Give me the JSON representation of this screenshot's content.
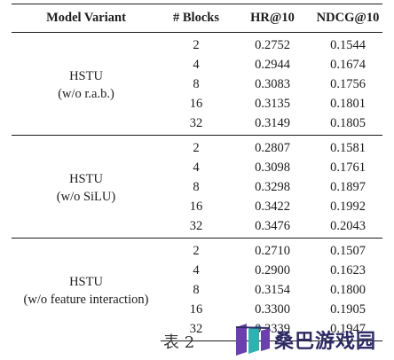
{
  "table": {
    "headers": [
      "Model Variant",
      "# Blocks",
      "HR@10",
      "NDCG@10"
    ],
    "groups": [
      {
        "variant_lines": [
          "HSTU",
          "(w/o r.a.b.)"
        ],
        "rows": [
          {
            "blocks": "2",
            "hr": "0.2752",
            "ndcg": "0.1544"
          },
          {
            "blocks": "4",
            "hr": "0.2944",
            "ndcg": "0.1674"
          },
          {
            "blocks": "8",
            "hr": "0.3083",
            "ndcg": "0.1756"
          },
          {
            "blocks": "16",
            "hr": "0.3135",
            "ndcg": "0.1801"
          },
          {
            "blocks": "32",
            "hr": "0.3149",
            "ndcg": "0.1805"
          }
        ]
      },
      {
        "variant_lines": [
          "HSTU",
          "(w/o SiLU)"
        ],
        "rows": [
          {
            "blocks": "2",
            "hr": "0.2807",
            "ndcg": "0.1581"
          },
          {
            "blocks": "4",
            "hr": "0.3098",
            "ndcg": "0.1761"
          },
          {
            "blocks": "8",
            "hr": "0.3298",
            "ndcg": "0.1897"
          },
          {
            "blocks": "16",
            "hr": "0.3422",
            "ndcg": "0.1992"
          },
          {
            "blocks": "32",
            "hr": "0.3476",
            "ndcg": "0.2043"
          }
        ]
      },
      {
        "variant_lines": [
          "HSTU",
          "(w/o feature interaction)"
        ],
        "rows": [
          {
            "blocks": "2",
            "hr": "0.2710",
            "ndcg": "0.1507"
          },
          {
            "blocks": "4",
            "hr": "0.2900",
            "ndcg": "0.1623"
          },
          {
            "blocks": "8",
            "hr": "0.3154",
            "ndcg": "0.1800"
          },
          {
            "blocks": "16",
            "hr": "0.3300",
            "ndcg": "0.1905"
          },
          {
            "blocks": "32",
            "hr": "0.3339",
            "ndcg": "0.1947"
          }
        ]
      }
    ]
  },
  "caption": "表 2",
  "watermark": {
    "text": "桑巴游戏园",
    "colors": {
      "purple": "#6b3fb0",
      "teal": "#2bb3b1",
      "navy": "#2e2a66"
    }
  }
}
